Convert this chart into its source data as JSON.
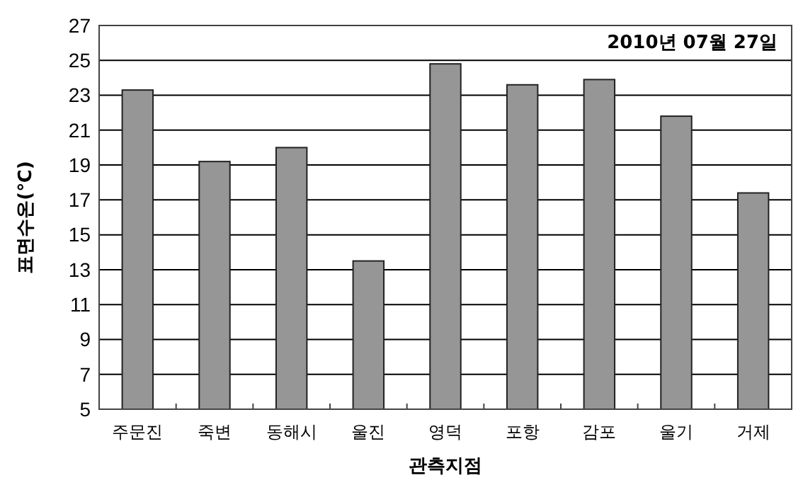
{
  "chart_data": {
    "type": "bar",
    "xlabel": "관측지점",
    "ylabel": "표면수온(℃)",
    "annotations": [
      "2010년 07월 27일"
    ],
    "categories": [
      "주문진",
      "죽변",
      "동해시",
      "울진",
      "영덕",
      "포항",
      "감포",
      "울기",
      "거제"
    ],
    "values": [
      23.3,
      19.2,
      20.0,
      13.5,
      24.8,
      23.6,
      23.9,
      21.8,
      17.4
    ],
    "color": "#969696",
    "ylim": [
      5,
      27
    ],
    "yticks": [
      5,
      7,
      9,
      11,
      13,
      15,
      17,
      19,
      21,
      23,
      25,
      27
    ],
    "grid": "y"
  }
}
